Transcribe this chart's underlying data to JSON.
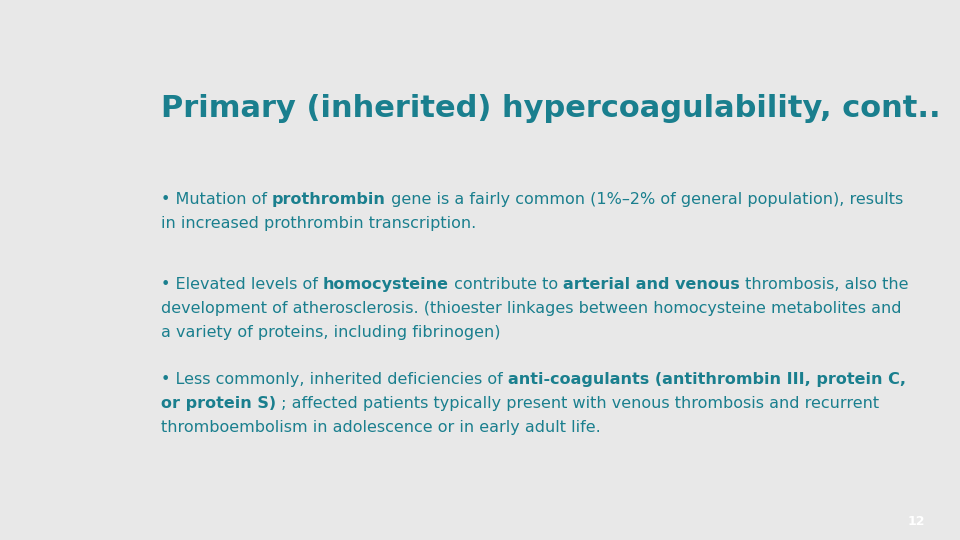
{
  "bg_color": "#e8e8e8",
  "teal_color": "#1a7f8e",
  "title": "Primary (inherited) hypercoagulability, cont..",
  "title_fontsize": 22,
  "page_num": "12",
  "page_box_color": "#1a7f8e",
  "header_rect_color": "#1a7f8e",
  "text_fontsize": 11.5,
  "bullet1": [
    {
      "text": "• Mutation of ",
      "bold": false
    },
    {
      "text": "prothrombin",
      "bold": true
    },
    {
      "text": " gene is a fairly common (1%–2% of general population), results\nin increased prothrombin transcription.",
      "bold": false
    }
  ],
  "bullet2": [
    {
      "text": "• Elevated levels of ",
      "bold": false
    },
    {
      "text": "homocysteine",
      "bold": true
    },
    {
      "text": " contribute to ",
      "bold": false
    },
    {
      "text": "arterial and venous",
      "bold": true
    },
    {
      "text": " thrombosis, also the\ndevelopment of atherosclerosis. (thioester linkages between homocysteine metabolites and\na variety of proteins, including fibrinogen)",
      "bold": false
    }
  ],
  "bullet3": [
    {
      "text": "• Less commonly, inherited deficiencies of ",
      "bold": false
    },
    {
      "text": "anti-coagulants (antithrombin III, protein C,\nor protein S)",
      "bold": true
    },
    {
      "text": " ; affected patients typically present with venous thrombosis and recurrent\nthromboembolism in adolescence or in early adult life.",
      "bold": false
    }
  ]
}
